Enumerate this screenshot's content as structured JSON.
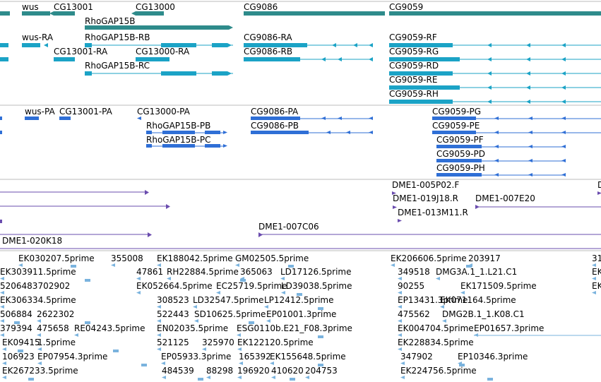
{
  "colors": {
    "gene": "#2e8b8b",
    "transcript": "#1ba3c6",
    "protein": "#2f6fd6",
    "clone": "#6a4cae",
    "est": "#7ab3de",
    "divider": "#bbbbbb"
  },
  "genes": [
    "wus",
    "CG13001",
    "CG13000",
    "CG9086",
    "CG9059",
    "RhoGAP15B"
  ],
  "transcripts": [
    "wus-RA",
    "RhoGAP15B-RB",
    "CG9086-RA",
    "CG9059-RF",
    "CG13001-RA",
    "CG13000-RA",
    "CG9086-RB",
    "CG9059-RG",
    "RhoGAP15B-RC",
    "CG9059-RD",
    "CG9059-RE",
    "CG9059-RH"
  ],
  "proteins": [
    "wus-PA",
    "CG13001-PA",
    "CG13000-PA",
    "CG9086-PA",
    "CG9059-PG",
    "RhoGAP15B-PB",
    "CG9086-PB",
    "CG9059-PE",
    "RhoGAP15B-PC",
    "CG9059-PF",
    "CG9059-PD",
    "CG9059-PH"
  ],
  "clones": [
    "DME1-005P02.F",
    "D",
    "DME1-019J18.R",
    "DME1-007E20",
    "DME1-013M11.R",
    "DME1-007C06",
    "DME1-020K18"
  ],
  "ests": [
    "EK030207.5prime",
    "355008",
    "EK188042.5prime",
    "GM02505.5prime",
    "EK206606.5prime",
    "203917",
    "31",
    "EK303911.5prime",
    "47861",
    "RH22884.5prime",
    "365063",
    "LD17126.5prime",
    "349518",
    "DMG3A.1_1.L21.C1",
    "EK",
    "5206483702902",
    "EK052664.5prime",
    "EC25719.5prime",
    "LD39038.5prime",
    "90255",
    "EK171509.5prime",
    "EK",
    "EK306334.5prime",
    "308523",
    "LD32547.5prime",
    "LP12412.5prime",
    "EP13431.3prime",
    "EK071164.5prime",
    "506884",
    "2622302",
    "522443",
    "SD10625.5prime",
    "EP01001.3prime",
    "475562",
    "DMG2B.1_1.K08.C1",
    "379394",
    "475658",
    "RE04243.5prime",
    "EN02035.5prime",
    "ESG0110b.E21_F08.3prime",
    "EK004704.5prime",
    "EP01657.3prime",
    "EK09415",
    "1.5prime",
    "521125",
    "325970",
    "EK122120.5prime",
    "EK228834.5prime",
    "106923",
    "EP07954.3prime",
    "EP05933.3prime",
    "165392",
    "EK155648.5prime",
    "347902",
    "EP10346.3prime",
    "EK267233.5prime",
    "484539",
    "88298",
    "196920",
    "410620",
    "204753",
    "EK224756.5prime"
  ]
}
